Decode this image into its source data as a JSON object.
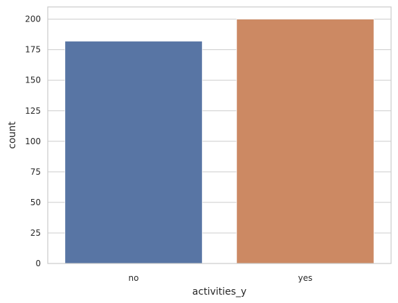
{
  "chart_data": {
    "type": "bar",
    "categories": [
      "no",
      "yes"
    ],
    "values": [
      182,
      200
    ],
    "colors": [
      "#5875a4",
      "#cc8963"
    ],
    "xlabel": "activities_y",
    "ylabel": "count",
    "ylim": [
      0,
      210
    ],
    "yticks": [
      0,
      25,
      50,
      75,
      100,
      125,
      150,
      175,
      200
    ],
    "grid": true,
    "legend": "none"
  }
}
